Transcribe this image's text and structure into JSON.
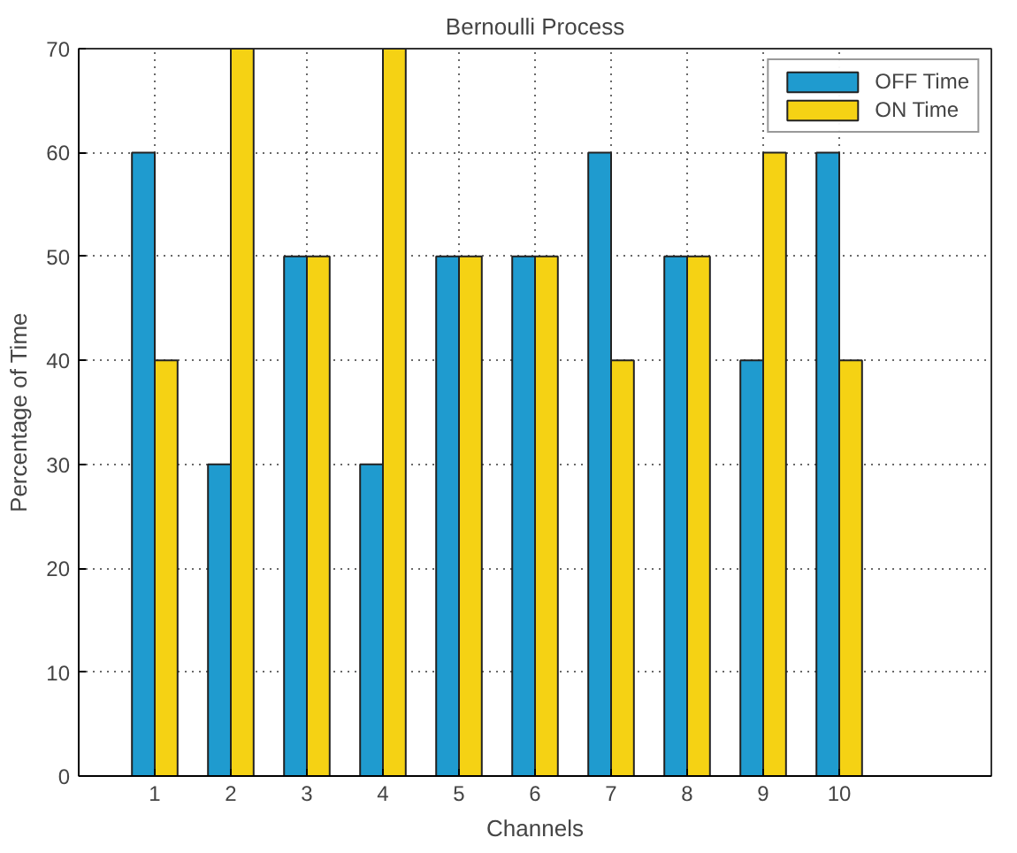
{
  "chart_data": {
    "type": "bar",
    "title": "Bernoulli Process",
    "xlabel": "Channels",
    "ylabel": "Percentage of Time",
    "x": [
      1,
      2,
      3,
      4,
      5,
      6,
      7,
      8,
      9,
      10
    ],
    "series": [
      {
        "name": "OFF Time",
        "color": "#1f9bcf",
        "values": [
          60,
          30,
          50,
          30,
          50,
          50,
          60,
          50,
          40,
          60
        ]
      },
      {
        "name": "ON Time",
        "color": "#f5d214",
        "values": [
          40,
          70,
          50,
          70,
          50,
          50,
          40,
          50,
          60,
          40
        ]
      }
    ],
    "xlim": [
      0,
      12
    ],
    "xticks": [
      1,
      2,
      3,
      4,
      5,
      6,
      7,
      8,
      9,
      10
    ],
    "ylim": [
      0,
      70
    ],
    "yticks": [
      0,
      10,
      20,
      30,
      40,
      50,
      60,
      70
    ],
    "grid": true,
    "legend": "top right"
  }
}
